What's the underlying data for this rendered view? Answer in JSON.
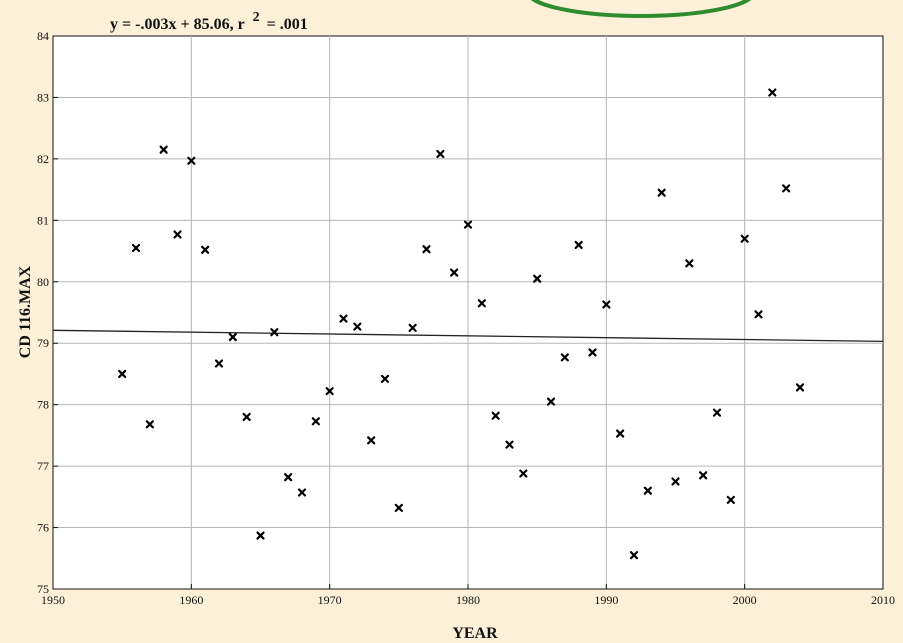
{
  "chart_data": {
    "type": "scatter",
    "title": "y = -.003x + 85.06, r",
    "title_sup": "2",
    "title_suffix": "= .001",
    "xlabel": "YEAR",
    "ylabel": "CD 116.MAX",
    "xlim": [
      1950,
      2010
    ],
    "ylim": [
      75,
      84
    ],
    "x_ticks": [
      1950,
      1960,
      1970,
      1980,
      1990,
      2000,
      2010
    ],
    "y_ticks": [
      75,
      76,
      77,
      78,
      79,
      80,
      81,
      82,
      83,
      84
    ],
    "grid": true,
    "marker": "x",
    "series": [
      {
        "points": [
          [
            1955,
            78.5
          ],
          [
            1956,
            80.55
          ],
          [
            1957,
            77.68
          ],
          [
            1958,
            82.15
          ],
          [
            1959,
            80.77
          ],
          [
            1960,
            81.97
          ],
          [
            1961,
            80.52
          ],
          [
            1962,
            78.67
          ],
          [
            1963,
            79.1
          ],
          [
            1964,
            77.8
          ],
          [
            1965,
            75.87
          ],
          [
            1966,
            79.18
          ],
          [
            1967,
            76.82
          ],
          [
            1968,
            76.57
          ],
          [
            1969,
            77.73
          ],
          [
            1970,
            78.22
          ],
          [
            1971,
            79.4
          ],
          [
            1972,
            79.27
          ],
          [
            1973,
            77.42
          ],
          [
            1974,
            78.42
          ],
          [
            1975,
            76.32
          ],
          [
            1976,
            79.25
          ],
          [
            1977,
            80.53
          ],
          [
            1978,
            82.08
          ],
          [
            1979,
            80.15
          ],
          [
            1980,
            80.93
          ],
          [
            1981,
            79.65
          ],
          [
            1982,
            77.82
          ],
          [
            1983,
            77.35
          ],
          [
            1984,
            76.88
          ],
          [
            1985,
            80.05
          ],
          [
            1986,
            78.05
          ],
          [
            1987,
            78.77
          ],
          [
            1988,
            80.6
          ],
          [
            1989,
            78.85
          ],
          [
            1990,
            79.63
          ],
          [
            1991,
            77.53
          ],
          [
            1992,
            75.55
          ],
          [
            1993,
            76.6
          ],
          [
            1994,
            81.45
          ],
          [
            1995,
            76.75
          ],
          [
            1996,
            80.3
          ],
          [
            1997,
            76.85
          ],
          [
            1998,
            77.87
          ],
          [
            1999,
            76.45
          ],
          [
            2000,
            80.7
          ],
          [
            2001,
            79.47
          ],
          [
            2002,
            83.08
          ],
          [
            2003,
            81.52
          ],
          [
            2004,
            78.28
          ]
        ]
      }
    ],
    "regression": {
      "slope": -0.003,
      "intercept": 85.06
    }
  },
  "decor": {
    "oval_color": "#2e8b2e",
    "background": "#fdf0d8"
  }
}
